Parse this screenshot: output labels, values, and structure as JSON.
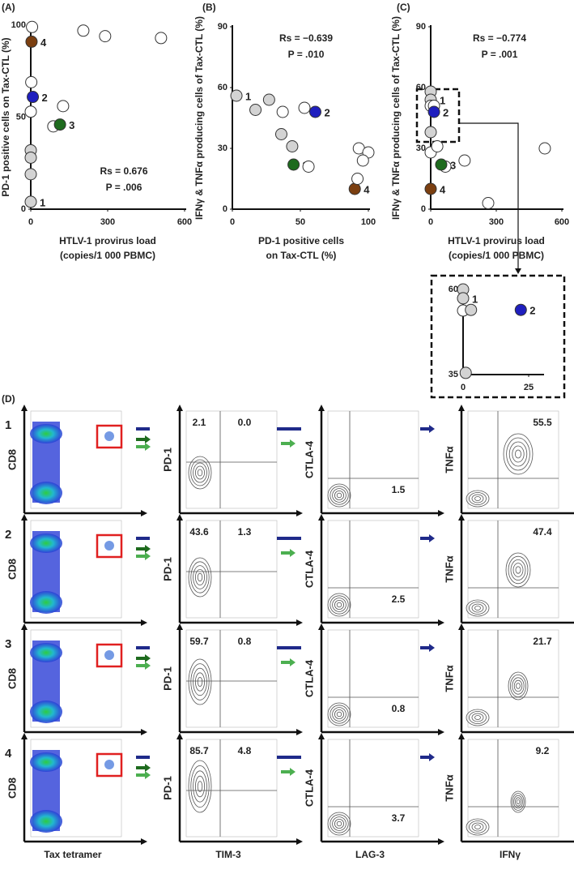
{
  "chart_data": [
    {
      "type": "scatter",
      "panel": "(A)",
      "ylabel": "PD-1 positive cells on Tax-CTL (%)",
      "xlabel": [
        "HTLV-1 provirus load",
        "(copies/1 000 PBMC)"
      ],
      "x": [
        5,
        3,
        205,
        290,
        508,
        2,
        8,
        0,
        126,
        88,
        114,
        0,
        0,
        0,
        0
      ],
      "values": [
        99,
        91,
        97,
        94,
        93,
        69,
        61,
        53,
        56,
        45,
        46,
        32,
        28,
        19,
        4
      ],
      "colors": [
        "#ffffff",
        "#7b3f10",
        "#ffffff",
        "#ffffff",
        "#ffffff",
        "#ffffff",
        "#1f1fbf",
        "#ffffff",
        "#ffffff",
        "#ffffff",
        "#1e6b1e",
        "#d3d3d3",
        "#d3d3d3",
        "#d3d3d3",
        "#d3d3d3"
      ],
      "labels": [
        null,
        "4",
        null,
        null,
        null,
        null,
        "2",
        null,
        null,
        null,
        "3",
        null,
        null,
        null,
        "1"
      ],
      "xlim": [
        0,
        600
      ],
      "ylim": [
        0,
        100
      ],
      "xticks": [
        0,
        300,
        600
      ],
      "yticks": [
        0,
        50,
        100
      ],
      "annotations": [
        "Rs = 0.676",
        "P = .006"
      ]
    },
    {
      "type": "scatter",
      "panel": "(B)",
      "ylabel": "IFNγ & TNFα producing cells of Tax-CTL (%)",
      "xlabel": [
        "PD-1 positive cells",
        "on Tax-CTL (%)"
      ],
      "x": [
        3,
        17,
        27,
        37,
        53,
        61,
        36,
        44,
        45,
        56,
        90,
        93,
        100,
        96,
        92
      ],
      "values": [
        56,
        49,
        54,
        48,
        50,
        48,
        37,
        31,
        22,
        21,
        10,
        30,
        28,
        24,
        15
      ],
      "colors": [
        "#d3d3d3",
        "#d3d3d3",
        "#d3d3d3",
        "#ffffff",
        "#ffffff",
        "#1f1fbf",
        "#d3d3d3",
        "#d3d3d3",
        "#1e6b1e",
        "#ffffff",
        "#7b3f10",
        "#ffffff",
        "#ffffff",
        "#ffffff",
        "#ffffff"
      ],
      "labels": [
        "1",
        null,
        null,
        null,
        null,
        "2",
        null,
        null,
        "3",
        null,
        "4",
        null,
        null,
        null,
        null
      ],
      "xlim": [
        0,
        100
      ],
      "ylim": [
        0,
        90
      ],
      "xticks": [
        0,
        50,
        100
      ],
      "yticks": [
        0,
        30,
        60,
        90
      ],
      "annotations": [
        "Rs = −0.639",
        "P = .010"
      ]
    },
    {
      "type": "scatter",
      "panel": "(C)",
      "ylabel": "IFNγ & TNFα producing cells of Tax-CTL (%)",
      "xlabel": [
        "HTLV-1 provirus load",
        "(copies/1 000 PBMC)"
      ],
      "x": [
        0,
        0,
        0,
        15,
        15,
        0,
        0,
        30,
        67,
        48,
        155,
        0,
        263,
        522
      ],
      "values": [
        58,
        54,
        51,
        51,
        48,
        38,
        28,
        31,
        21,
        22,
        24,
        10,
        3,
        30
      ],
      "colors": [
        "#d3d3d3",
        "#d3d3d3",
        "#ffffff",
        "#ffffff",
        "#1f1fbf",
        "#d3d3d3",
        "#ffffff",
        "#ffffff",
        "#ffffff",
        "#1e6b1e",
        "#ffffff",
        "#7b3f10",
        "#ffffff",
        "#ffffff"
      ],
      "labels": [
        null,
        "1",
        null,
        null,
        "2",
        null,
        null,
        null,
        null,
        "3",
        null,
        "4",
        null,
        null
      ],
      "xlim": [
        0,
        600
      ],
      "ylim": [
        0,
        90
      ],
      "xticks": [
        0,
        300,
        600
      ],
      "yticks": [
        0,
        30,
        60,
        90
      ],
      "annotations": [
        "Rs = −0.774",
        "P = .001"
      ]
    },
    {
      "type": "scatter",
      "x": [
        0,
        0,
        0,
        3,
        22,
        1
      ],
      "values": [
        60,
        57.4,
        53.8,
        54,
        54,
        35.5
      ],
      "colors": [
        "#d3d3d3",
        "#d3d3d3",
        "#ffffff",
        "#d3d3d3",
        "#1f1fbf",
        "#d3d3d3"
      ],
      "labels": [
        null,
        "1",
        null,
        null,
        "2",
        null
      ],
      "xlim": [
        0,
        25
      ],
      "ylim": [
        35,
        60
      ],
      "xticks": [
        0,
        25
      ],
      "yticks": [
        35,
        60
      ]
    }
  ],
  "panel_d": {
    "label": "(D)",
    "y_labels": [
      "CD8",
      "PD-1",
      "CTLA-4",
      "TNFα"
    ],
    "x_labels": [
      "Tax tetramer",
      "TIM-3",
      "LAG-3",
      "IFNγ"
    ],
    "rows": [
      {
        "label": "1",
        "color": "#111111",
        "pd1": "2.1",
        "pd1_tim3": "0.0",
        "lag3": "1.5",
        "tnfa": "55.5"
      },
      {
        "label": "2",
        "color": "#1f1fbf",
        "pd1": "43.6",
        "pd1_tim3": "1.3",
        "lag3": "2.5",
        "tnfa": "47.4"
      },
      {
        "label": "3",
        "color": "#111111",
        "pd1": "59.7",
        "pd1_tim3": "0.8",
        "lag3": "0.8",
        "tnfa": "21.7"
      },
      {
        "label": "4",
        "color": "#7b3f10",
        "pd1": "85.7",
        "pd1_tim3": "4.8",
        "lag3": "3.7",
        "tnfa": "9.2"
      }
    ]
  }
}
